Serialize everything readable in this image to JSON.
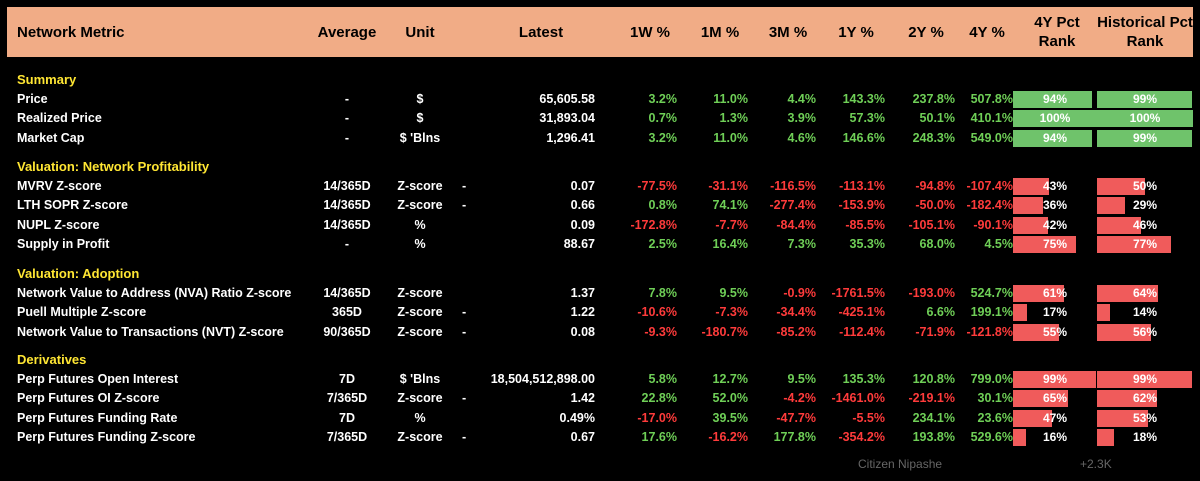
{
  "header": {
    "metric": "Network Metric",
    "average": "Average",
    "unit": "Unit",
    "latest": "Latest",
    "w1": "1W %",
    "m1": "1M %",
    "m3": "3M %",
    "y1": "1Y %",
    "y2": "2Y %",
    "y4": "4Y %",
    "pct4y": "4Y Pct Rank",
    "pcthist": "Historical Pct Rank"
  },
  "sections": [
    {
      "title": "Summary",
      "rows": [
        {
          "name": "Price",
          "avg": "-",
          "unit": "$",
          "dash": "",
          "latest": "65,605.58",
          "w1": "3.2%",
          "m1": "11.0%",
          "m3": "4.4%",
          "y1": "143.3%",
          "y2": "237.8%",
          "y4": "507.8%",
          "r4": "94%",
          "rh": "99%",
          "r4v": 94,
          "rhv": 99,
          "color": "green"
        },
        {
          "name": "Realized Price",
          "avg": "-",
          "unit": "$",
          "dash": "",
          "latest": "31,893.04",
          "w1": "0.7%",
          "m1": "1.3%",
          "m3": "3.9%",
          "y1": "57.3%",
          "y2": "50.1%",
          "y4": "410.1%",
          "r4": "100%",
          "rh": "100%",
          "r4v": 100,
          "rhv": 100,
          "color": "green"
        },
        {
          "name": "Market Cap",
          "avg": "-",
          "unit": "$ 'Blns",
          "dash": "",
          "latest": "1,296.41",
          "w1": "3.2%",
          "m1": "11.0%",
          "m3": "4.6%",
          "y1": "146.6%",
          "y2": "248.3%",
          "y4": "549.0%",
          "r4": "94%",
          "rh": "99%",
          "r4v": 94,
          "rhv": 99,
          "color": "green"
        }
      ]
    },
    {
      "title": "Valuation: Network Profitability",
      "rows": [
        {
          "name": "MVRV Z-score",
          "avg": "14/365D",
          "unit": "Z-score",
          "dash": "-",
          "latest": "0.07",
          "w1": "-77.5%",
          "m1": "-31.1%",
          "m3": "-116.5%",
          "y1": "-113.1%",
          "y2": "-94.8%",
          "y4": "-107.4%",
          "r4": "43%",
          "rh": "50%",
          "r4v": 43,
          "rhv": 50,
          "color": "red"
        },
        {
          "name": "LTH SOPR Z-score",
          "avg": "14/365D",
          "unit": "Z-score",
          "dash": "-",
          "latest": "0.66",
          "w1": "0.8%",
          "m1": "74.1%",
          "m3": "-277.4%",
          "y1": "-153.9%",
          "y2": "-50.0%",
          "y4": "-182.4%",
          "r4": "36%",
          "rh": "29%",
          "r4v": 36,
          "rhv": 29,
          "color": "red"
        },
        {
          "name": "NUPL Z-score",
          "avg": "14/365D",
          "unit": "%",
          "dash": "",
          "latest": "0.09",
          "w1": "-172.8%",
          "m1": "-7.7%",
          "m3": "-84.4%",
          "y1": "-85.5%",
          "y2": "-105.1%",
          "y4": "-90.1%",
          "r4": "42%",
          "rh": "46%",
          "r4v": 42,
          "rhv": 46,
          "color": "red"
        },
        {
          "name": "Supply in Profit",
          "avg": "-",
          "unit": "%",
          "dash": "",
          "latest": "88.67",
          "w1": "2.5%",
          "m1": "16.4%",
          "m3": "7.3%",
          "y1": "35.3%",
          "y2": "68.0%",
          "y4": "4.5%",
          "r4": "75%",
          "rh": "77%",
          "r4v": 75,
          "rhv": 77,
          "color": "red"
        }
      ]
    },
    {
      "title": "Valuation: Adoption",
      "rows": [
        {
          "name": "Network Value to Address (NVA) Ratio Z-score",
          "avg": "14/365D",
          "unit": "Z-score",
          "dash": "",
          "latest": "1.37",
          "w1": "7.8%",
          "m1": "9.5%",
          "m3": "-0.9%",
          "y1": "-1761.5%",
          "y2": "-193.0%",
          "y4": "524.7%",
          "r4": "61%",
          "rh": "64%",
          "r4v": 61,
          "rhv": 64,
          "color": "red"
        },
        {
          "name": "Puell Multiple Z-score",
          "avg": "365D",
          "unit": "Z-score",
          "dash": "-",
          "latest": "1.22",
          "w1": "-10.6%",
          "m1": "-7.3%",
          "m3": "-34.4%",
          "y1": "-425.1%",
          "y2": "6.6%",
          "y4": "199.1%",
          "r4": "17%",
          "rh": "14%",
          "r4v": 17,
          "rhv": 14,
          "color": "red"
        },
        {
          "name": "Network Value to Transactions (NVT) Z-score",
          "avg": "90/365D",
          "unit": "Z-score",
          "dash": "-",
          "latest": "0.08",
          "w1": "-9.3%",
          "m1": "-180.7%",
          "m3": "-85.2%",
          "y1": "-112.4%",
          "y2": "-71.9%",
          "y4": "-121.8%",
          "r4": "55%",
          "rh": "56%",
          "r4v": 55,
          "rhv": 56,
          "color": "red"
        }
      ]
    },
    {
      "title": "Derivatives",
      "rows": [
        {
          "name": "Perp Futures Open Interest",
          "avg": "7D",
          "unit": "$ 'Blns",
          "dash": "",
          "latest": "18,504,512,898.00",
          "w1": "5.8%",
          "m1": "12.7%",
          "m3": "9.5%",
          "y1": "135.3%",
          "y2": "120.8%",
          "y4": "799.0%",
          "r4": "99%",
          "rh": "99%",
          "r4v": 99,
          "rhv": 99,
          "color": "red"
        },
        {
          "name": "Perp Futures OI Z-score",
          "avg": "7/365D",
          "unit": "Z-score",
          "dash": "-",
          "latest": "1.42",
          "w1": "22.8%",
          "m1": "52.0%",
          "m3": "-4.2%",
          "y1": "-1461.0%",
          "y2": "-219.1%",
          "y4": "30.1%",
          "r4": "65%",
          "rh": "62%",
          "r4v": 65,
          "rhv": 62,
          "color": "red"
        },
        {
          "name": "Perp Futures Funding Rate",
          "avg": "7D",
          "unit": "%",
          "dash": "",
          "latest": "0.49%",
          "w1": "-17.0%",
          "m1": "39.5%",
          "m3": "-47.7%",
          "y1": "-5.5%",
          "y2": "234.1%",
          "y4": "23.6%",
          "r4": "47%",
          "rh": "53%",
          "r4v": 47,
          "rhv": 53,
          "color": "red"
        },
        {
          "name": "Perp Futures Funding Z-score",
          "avg": "7/365D",
          "unit": "Z-score",
          "dash": "-",
          "latest": "0.67",
          "w1": "17.6%",
          "m1": "-16.2%",
          "m3": "177.8%",
          "y1": "-354.2%",
          "y2": "193.8%",
          "y4": "529.6%",
          "r4": "16%",
          "rh": "18%",
          "r4v": 16,
          "rhv": 18,
          "color": "red"
        }
      ]
    }
  ],
  "footer": {
    "author": "Citizen Nipashe",
    "reactions": "+2.3K"
  }
}
